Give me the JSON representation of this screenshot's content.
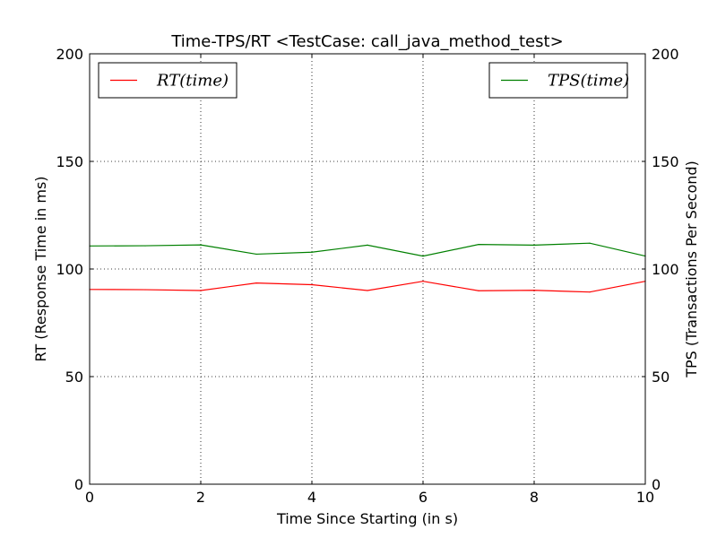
{
  "chart_data": {
    "type": "line",
    "title": "Time-TPS/RT <TestCase: call_java_method_test>",
    "xlabel": "Time Since Starting (in s)",
    "ylabel_left": "RT  (Response Time in ms)",
    "ylabel_right": "TPS  (Transactions Per Second)",
    "xlim": [
      0,
      10
    ],
    "ylim": [
      0,
      200
    ],
    "x_ticks": [
      0,
      2,
      4,
      6,
      8,
      10
    ],
    "y_ticks": [
      0,
      50,
      100,
      150,
      200
    ],
    "grid": true,
    "x": [
      0,
      1,
      2,
      3,
      4,
      5,
      6,
      7,
      8,
      9,
      10
    ],
    "series": [
      {
        "name": "RT(time)",
        "axis": "left",
        "color": "#ff0000",
        "legend_position": "upper-left",
        "values": [
          90.5,
          90.4,
          90.0,
          93.5,
          92.7,
          90.0,
          94.3,
          89.9,
          90.1,
          89.3,
          94.3
        ]
      },
      {
        "name": "TPS(time)",
        "axis": "right",
        "color": "#008000",
        "legend_position": "upper-right",
        "values": [
          110.7,
          110.8,
          111.2,
          106.9,
          107.8,
          111.1,
          106.0,
          111.4,
          111.1,
          112.0,
          106.0
        ]
      }
    ]
  }
}
